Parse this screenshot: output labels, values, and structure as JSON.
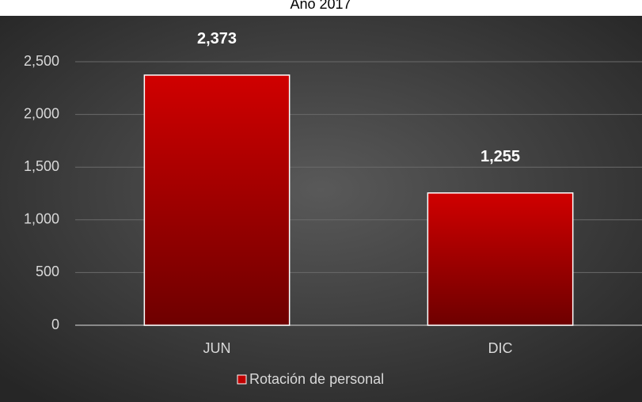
{
  "chart_data": {
    "type": "bar",
    "title": "Año 2017",
    "categories": [
      "JUN",
      "DIC"
    ],
    "series": [
      {
        "name": "Rotación de personal",
        "color": "#c00000",
        "values": [
          2373,
          1255
        ],
        "value_labels": [
          "2,373",
          "1,255"
        ]
      }
    ],
    "ylim": [
      0,
      2750
    ],
    "yticks": [
      0,
      500,
      {
        "value": 1000,
        "label": "1,000"
      },
      {
        "value": 1500,
        "label": "1,500"
      },
      {
        "value": 2000,
        "label": "2,000"
      },
      {
        "value": 2500,
        "label": "2,500"
      }
    ],
    "grid": true,
    "legend": "bottom"
  }
}
